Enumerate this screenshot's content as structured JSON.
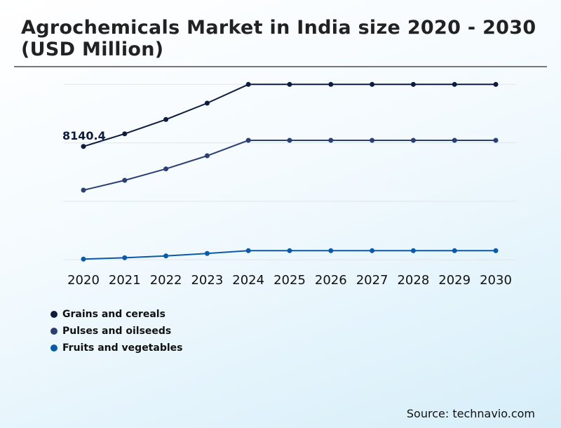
{
  "chart_data": {
    "type": "line",
    "title": "Agrochemicals Market in India size 2020 - 2030 (USD Million)",
    "x": [
      "2020",
      "2021",
      "2022",
      "2023",
      "2024",
      "2025",
      "2026",
      "2027",
      "2028",
      "2029",
      "2030"
    ],
    "ylim": [
      0,
      12600
    ],
    "grid": true,
    "legend_placement": "bottom-left",
    "series": [
      {
        "name": "Grains and cereals",
        "color": "#0d1b3e",
        "values": [
          8140.4,
          9052,
          10080,
          11254,
          12600,
          12600,
          12600,
          12600,
          12600,
          12600,
          12600
        ]
      },
      {
        "name": "Pulses and oilseeds",
        "color": "#2b3f73",
        "values": [
          5005,
          5710,
          6532,
          7474,
          8583,
          8583,
          8583,
          8583,
          8583,
          8583,
          8583
        ]
      },
      {
        "name": "Fruits and vegetables",
        "color": "#0a5aa8",
        "values": [
          50,
          150,
          280,
          455,
          655,
          655,
          655,
          655,
          655,
          655,
          655
        ]
      }
    ],
    "annotations": [
      {
        "series": 0,
        "index": 0,
        "text": "8140.4"
      }
    ]
  },
  "source": "Source: technavio.com"
}
